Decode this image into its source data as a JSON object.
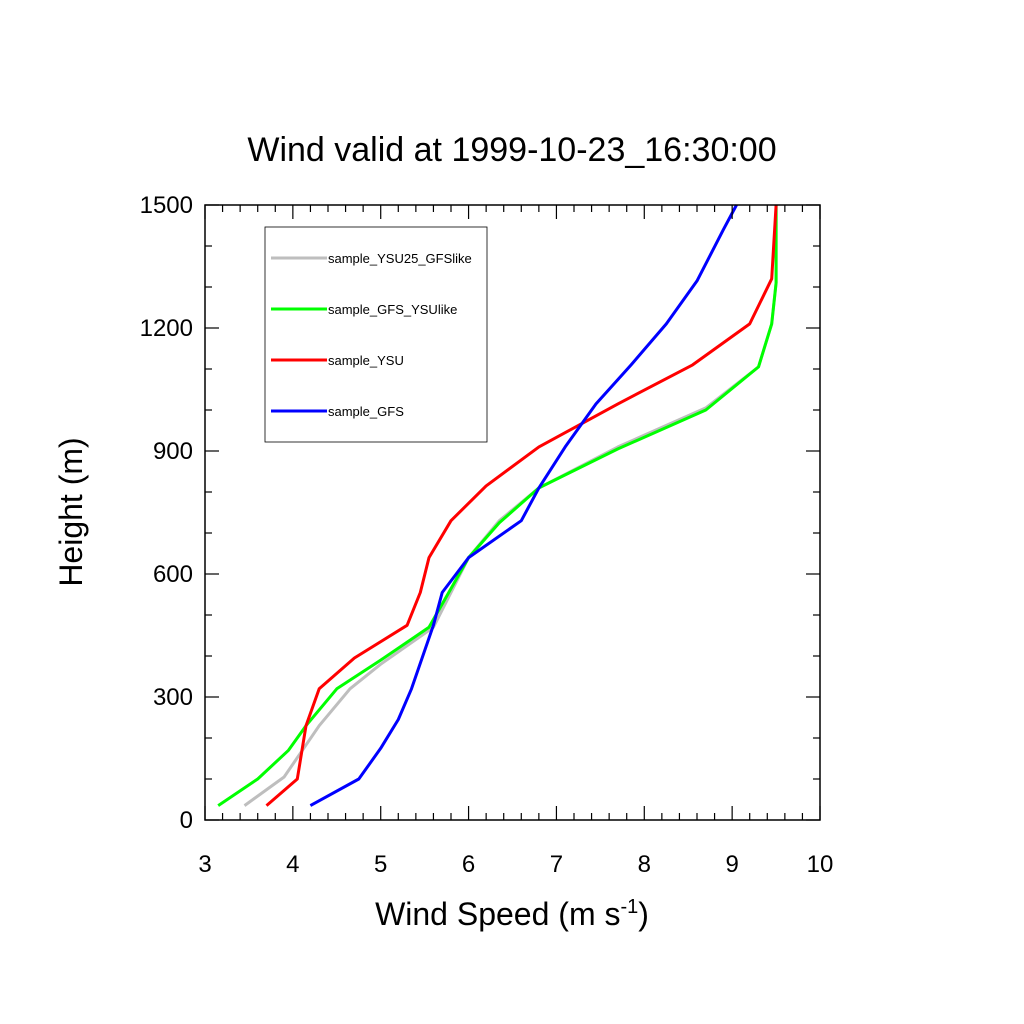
{
  "chart_data": {
    "type": "line",
    "title": "Wind valid at 1999-10-23_16:30:00",
    "xlabel_main": "Wind Speed (m s",
    "xlabel_sup": "-1",
    "xlabel_close": ")",
    "ylabel": "Height (m)",
    "xlim": [
      3,
      10
    ],
    "ylim": [
      0,
      1500
    ],
    "x_ticks": [
      "3",
      "4",
      "5",
      "6",
      "7",
      "8",
      "9",
      "10"
    ],
    "y_ticks": [
      "0",
      "300",
      "600",
      "900",
      "1200",
      "1500"
    ],
    "legend_position": "top-left",
    "grid": false,
    "series": [
      {
        "name": "sample_YSU25_GFSlike",
        "color": "#bebebe",
        "points": [
          [
            3.45,
            35
          ],
          [
            3.9,
            105
          ],
          [
            4.3,
            230
          ],
          [
            4.65,
            320
          ],
          [
            5.0,
            380
          ],
          [
            5.6,
            470
          ],
          [
            6.0,
            640
          ],
          [
            6.35,
            730
          ],
          [
            6.8,
            810
          ],
          [
            7.7,
            910
          ],
          [
            8.7,
            1005
          ],
          [
            9.3,
            1105
          ],
          [
            9.45,
            1210
          ],
          [
            9.5,
            1310
          ],
          [
            9.5,
            1500
          ]
        ]
      },
      {
        "name": "sample_GFS_YSUlike",
        "color": "#00ff00",
        "points": [
          [
            3.15,
            35
          ],
          [
            3.6,
            100
          ],
          [
            3.95,
            170
          ],
          [
            4.15,
            230
          ],
          [
            4.5,
            320
          ],
          [
            5.0,
            390
          ],
          [
            5.55,
            470
          ],
          [
            6.0,
            640
          ],
          [
            6.35,
            725
          ],
          [
            6.8,
            810
          ],
          [
            7.7,
            905
          ],
          [
            8.7,
            1000
          ],
          [
            9.3,
            1105
          ],
          [
            9.45,
            1210
          ],
          [
            9.5,
            1310
          ],
          [
            9.5,
            1500
          ]
        ]
      },
      {
        "name": "sample_YSU",
        "color": "#ff0000",
        "points": [
          [
            3.7,
            35
          ],
          [
            4.05,
            100
          ],
          [
            4.15,
            230
          ],
          [
            4.3,
            320
          ],
          [
            4.7,
            395
          ],
          [
            5.3,
            475
          ],
          [
            5.45,
            555
          ],
          [
            5.55,
            640
          ],
          [
            5.8,
            730
          ],
          [
            6.2,
            815
          ],
          [
            6.8,
            910
          ],
          [
            7.7,
            1015
          ],
          [
            8.55,
            1110
          ],
          [
            9.2,
            1210
          ],
          [
            9.45,
            1320
          ],
          [
            9.5,
            1500
          ]
        ]
      },
      {
        "name": "sample_GFS",
        "color": "#0000ff",
        "points": [
          [
            4.2,
            35
          ],
          [
            4.75,
            100
          ],
          [
            5.0,
            175
          ],
          [
            5.2,
            245
          ],
          [
            5.35,
            320
          ],
          [
            5.6,
            475
          ],
          [
            5.7,
            555
          ],
          [
            6.0,
            640
          ],
          [
            6.6,
            730
          ],
          [
            6.8,
            810
          ],
          [
            7.1,
            910
          ],
          [
            7.45,
            1015
          ],
          [
            7.85,
            1110
          ],
          [
            8.25,
            1210
          ],
          [
            8.6,
            1315
          ],
          [
            8.9,
            1440
          ],
          [
            9.05,
            1500
          ]
        ]
      }
    ]
  }
}
